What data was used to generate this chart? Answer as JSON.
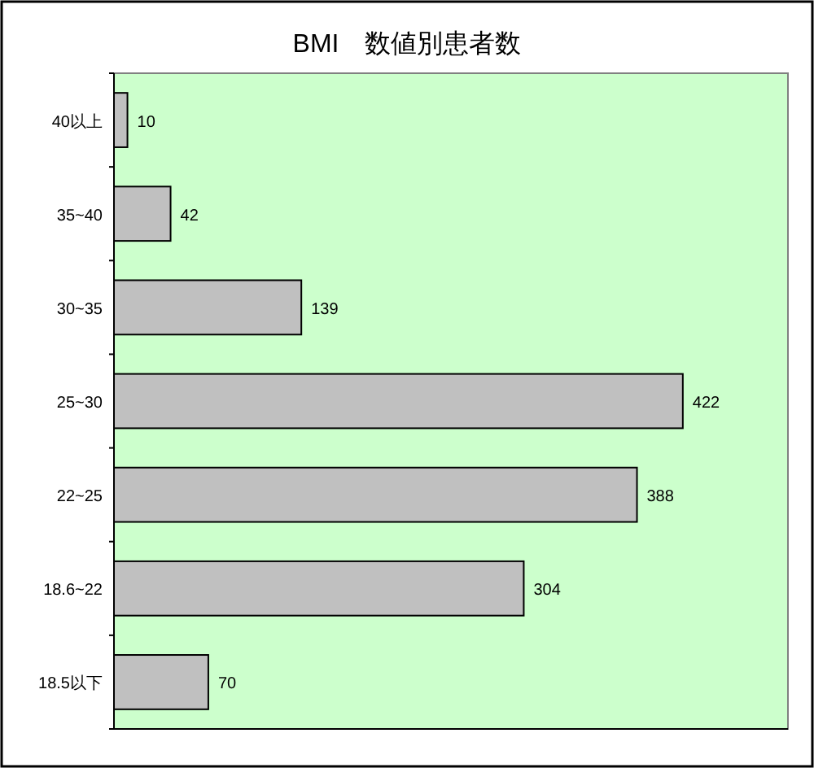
{
  "chart_data": {
    "type": "bar",
    "orientation": "horizontal",
    "title": "BMI　数値別患者数",
    "categories": [
      "40以上",
      "35~40",
      "30~35",
      "25~30",
      "22~25",
      "18.6~22",
      "18.5以下"
    ],
    "values": [
      10,
      42,
      139,
      422,
      388,
      304,
      70
    ],
    "color": "#c0c0c0",
    "xlim": [
      0,
      500
    ],
    "data_labels": true,
    "tick_labels": "y"
  }
}
